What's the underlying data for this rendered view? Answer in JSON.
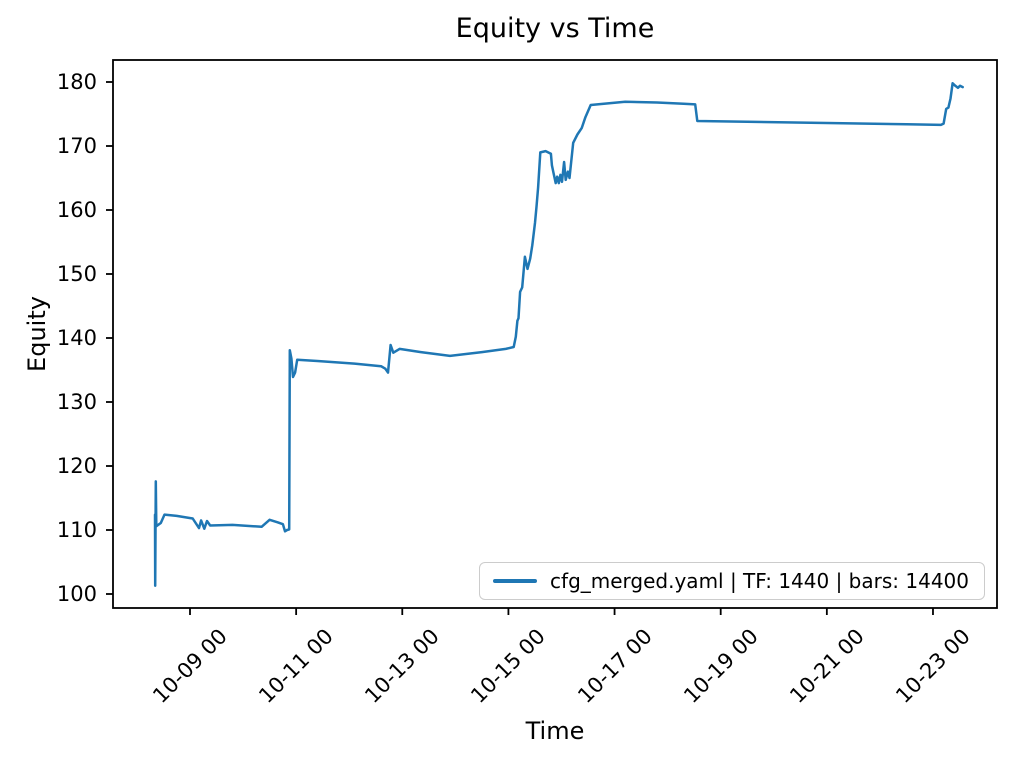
{
  "figure": {
    "title": "Equity vs Time",
    "xlabel": "Time",
    "ylabel": "Equity"
  },
  "legend": {
    "label": "cfg_merged.yaml | TF: 1440 | bars: 14400",
    "line_color": "#1f77b4",
    "position": "lower right"
  },
  "colors": {
    "series_line": "#1f77b4",
    "axes": "#000000",
    "legend_border": "#cccccc",
    "background": "#ffffff"
  },
  "chart_data": {
    "type": "line",
    "title": "Equity vs Time",
    "xlabel": "Time",
    "ylabel": "Equity",
    "grid": false,
    "legend_position": "lower right",
    "x_tick_labels": [
      "10-09 00",
      "10-11 00",
      "10-13 00",
      "10-15 00",
      "10-17 00",
      "10-19 00",
      "10-21 00",
      "10-23 00"
    ],
    "x_tick_days": [
      0,
      2,
      4,
      6,
      8,
      10,
      12,
      14
    ],
    "y_ticks": [
      100,
      110,
      120,
      130,
      140,
      150,
      160,
      170,
      180
    ],
    "ylim": [
      97.8,
      183.4
    ],
    "xlim_days": [
      -1.45,
      15.2
    ],
    "x_axis_note": "x values of points are days after the '10-09 00' tick",
    "series": [
      {
        "name": "cfg_merged.yaml | TF: 1440 | bars: 14400",
        "color": "#1f77b4",
        "points": [
          [
            -0.66,
            112.4
          ],
          [
            -0.655,
            101.3
          ],
          [
            -0.645,
            117.6
          ],
          [
            -0.635,
            110.6
          ],
          [
            -0.55,
            111.1
          ],
          [
            -0.48,
            112.4
          ],
          [
            -0.25,
            112.2
          ],
          [
            0.05,
            111.8
          ],
          [
            0.17,
            110.3
          ],
          [
            0.21,
            111.5
          ],
          [
            0.27,
            110.2
          ],
          [
            0.32,
            111.4
          ],
          [
            0.38,
            110.7
          ],
          [
            0.8,
            110.8
          ],
          [
            1.35,
            110.5
          ],
          [
            1.5,
            111.6
          ],
          [
            1.65,
            111.2
          ],
          [
            1.75,
            110.9
          ],
          [
            1.79,
            109.8
          ],
          [
            1.83,
            110.0
          ],
          [
            1.87,
            110.1
          ],
          [
            1.88,
            138.1
          ],
          [
            1.91,
            136.8
          ],
          [
            1.94,
            133.9
          ],
          [
            1.98,
            134.6
          ],
          [
            2.02,
            136.6
          ],
          [
            2.4,
            136.4
          ],
          [
            3.1,
            136.0
          ],
          [
            3.6,
            135.6
          ],
          [
            3.68,
            135.2
          ],
          [
            3.73,
            134.6
          ],
          [
            3.78,
            138.9
          ],
          [
            3.83,
            137.7
          ],
          [
            3.95,
            138.3
          ],
          [
            4.35,
            137.8
          ],
          [
            4.9,
            137.2
          ],
          [
            5.5,
            137.8
          ],
          [
            5.95,
            138.3
          ],
          [
            6.1,
            138.6
          ],
          [
            6.14,
            140.2
          ],
          [
            6.17,
            142.7
          ],
          [
            6.19,
            143.1
          ],
          [
            6.22,
            147.2
          ],
          [
            6.26,
            147.9
          ],
          [
            6.31,
            152.7
          ],
          [
            6.36,
            150.8
          ],
          [
            6.41,
            152.4
          ],
          [
            6.45,
            154.5
          ],
          [
            6.5,
            158.0
          ],
          [
            6.53,
            160.5
          ],
          [
            6.56,
            163.5
          ],
          [
            6.6,
            169.0
          ],
          [
            6.7,
            169.2
          ],
          [
            6.8,
            168.8
          ],
          [
            6.82,
            167.0
          ],
          [
            6.85,
            165.8
          ],
          [
            6.89,
            164.2
          ],
          [
            6.92,
            165.2
          ],
          [
            6.95,
            164.2
          ],
          [
            6.98,
            165.5
          ],
          [
            7.01,
            164.4
          ],
          [
            7.05,
            167.5
          ],
          [
            7.08,
            164.7
          ],
          [
            7.12,
            166.0
          ],
          [
            7.15,
            165.0
          ],
          [
            7.22,
            170.5
          ],
          [
            7.3,
            171.8
          ],
          [
            7.38,
            172.8
          ],
          [
            7.45,
            174.5
          ],
          [
            7.55,
            176.4
          ],
          [
            7.8,
            176.6
          ],
          [
            8.2,
            176.9
          ],
          [
            8.8,
            176.8
          ],
          [
            9.3,
            176.6
          ],
          [
            9.52,
            176.5
          ],
          [
            9.56,
            173.9
          ],
          [
            10.5,
            173.8
          ],
          [
            12.0,
            173.6
          ],
          [
            13.5,
            173.4
          ],
          [
            14.15,
            173.3
          ],
          [
            14.2,
            173.5
          ],
          [
            14.25,
            175.8
          ],
          [
            14.29,
            176.0
          ],
          [
            14.33,
            177.4
          ],
          [
            14.37,
            179.8
          ],
          [
            14.42,
            179.4
          ],
          [
            14.47,
            179.1
          ],
          [
            14.51,
            179.4
          ],
          [
            14.56,
            179.2
          ]
        ]
      }
    ]
  }
}
